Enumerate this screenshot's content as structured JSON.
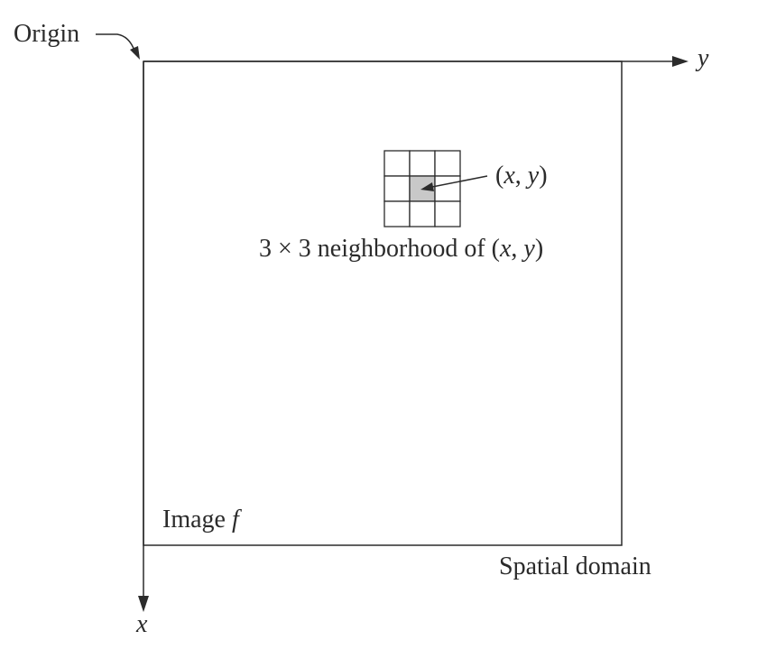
{
  "labels": {
    "origin": "Origin",
    "y_axis": "y",
    "x_axis": "x",
    "image": "Image ",
    "image_var": "f",
    "spatial_domain": "Spatial domain"
  },
  "point_label": {
    "open": "(",
    "x": "x",
    "comma": ", ",
    "y": "y",
    "close": ")"
  },
  "neighborhood_label": {
    "prefix": "3 × 3 neighborhood of (",
    "x": "x",
    "comma": ", ",
    "y": "y",
    "close": ")"
  },
  "neighborhood": {
    "rows": 3,
    "cols": 3,
    "highlight_row": 1,
    "highlight_col": 1
  },
  "colors": {
    "line": "#2b2b2b",
    "highlight": "#c8c8c8",
    "background": "#ffffff"
  }
}
